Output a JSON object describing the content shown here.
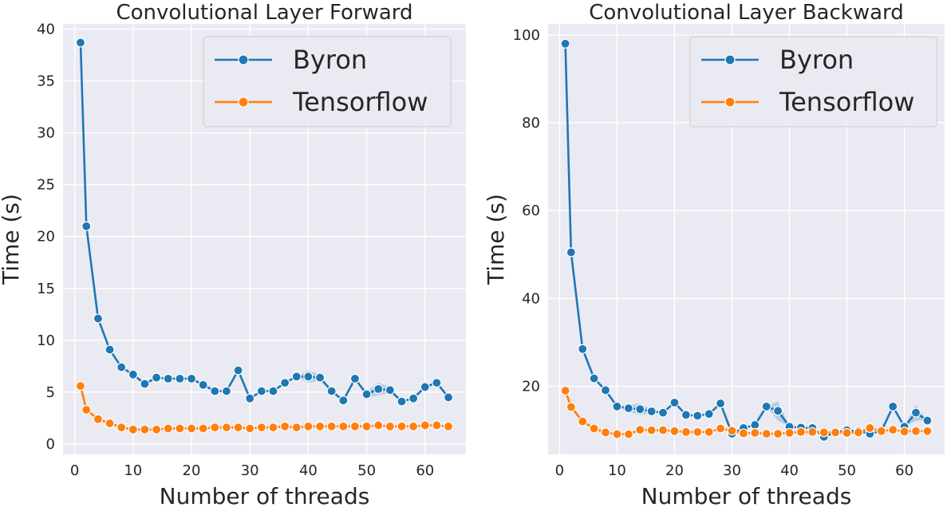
{
  "chart_data": [
    {
      "type": "line",
      "title": "Convolutional Layer Forward",
      "xlabel": "Number of threads",
      "ylabel": "Time (s)",
      "xlim": [
        -2,
        67
      ],
      "ylim": [
        -1,
        40.5
      ],
      "xticks": [
        0,
        10,
        20,
        30,
        40,
        50,
        60
      ],
      "yticks": [
        0,
        5,
        10,
        15,
        20,
        25,
        30,
        35,
        40
      ],
      "grid": true,
      "legend_position": "top-right",
      "x": [
        1,
        2,
        4,
        6,
        8,
        10,
        12,
        14,
        16,
        18,
        20,
        22,
        24,
        26,
        28,
        30,
        32,
        34,
        36,
        38,
        40,
        42,
        44,
        46,
        48,
        50,
        52,
        54,
        56,
        58,
        60,
        62,
        64
      ],
      "series": [
        {
          "name": "Byron",
          "color": "#1f77b4",
          "values": [
            38.7,
            21.0,
            12.1,
            9.1,
            7.4,
            6.7,
            5.8,
            6.4,
            6.3,
            6.3,
            6.3,
            5.7,
            5.1,
            5.1,
            7.1,
            4.4,
            5.1,
            5.1,
            5.9,
            6.5,
            6.5,
            6.4,
            5.1,
            4.2,
            6.3,
            4.8,
            5.3,
            5.2,
            4.1,
            4.4,
            5.5,
            5.9,
            4.5
          ],
          "band_halfwidth": [
            0,
            0,
            0,
            0,
            0,
            0,
            0,
            0,
            0.2,
            0,
            0,
            0,
            0,
            0,
            0,
            0,
            0,
            0,
            0,
            0,
            0.6,
            0.3,
            0,
            0,
            0,
            0.3,
            0.6,
            0.3,
            0,
            0,
            0,
            0,
            0
          ]
        },
        {
          "name": "Tensorflow",
          "color": "#ff7f0e",
          "values": [
            5.6,
            3.3,
            2.4,
            2.0,
            1.6,
            1.4,
            1.4,
            1.4,
            1.5,
            1.5,
            1.5,
            1.5,
            1.6,
            1.6,
            1.6,
            1.5,
            1.6,
            1.6,
            1.7,
            1.6,
            1.7,
            1.7,
            1.7,
            1.7,
            1.7,
            1.7,
            1.8,
            1.7,
            1.7,
            1.7,
            1.8,
            1.8,
            1.7
          ]
        }
      ]
    },
    {
      "type": "line",
      "title": "Convolutional Layer Backward",
      "xlabel": "Number of threads",
      "ylabel": "Time (s)",
      "xlim": [
        -2,
        67
      ],
      "ylim": [
        4.5,
        102.5
      ],
      "xticks": [
        0,
        10,
        20,
        30,
        40,
        50,
        60
      ],
      "yticks": [
        20,
        40,
        60,
        80,
        100
      ],
      "grid": true,
      "legend_position": "top-right",
      "x": [
        1,
        2,
        4,
        6,
        8,
        10,
        12,
        14,
        16,
        18,
        20,
        22,
        24,
        26,
        28,
        30,
        32,
        34,
        36,
        38,
        40,
        42,
        44,
        46,
        48,
        50,
        52,
        54,
        56,
        58,
        60,
        62,
        64
      ],
      "series": [
        {
          "name": "Byron",
          "color": "#1f77b4",
          "values": [
            98.0,
            50.5,
            28.5,
            21.8,
            19.1,
            15.4,
            15.0,
            14.8,
            14.3,
            14.0,
            16.3,
            13.5,
            13.3,
            13.7,
            16.1,
            9.2,
            10.5,
            11.2,
            15.4,
            14.4,
            10.8,
            10.6,
            10.5,
            8.5,
            9.5,
            10.0,
            9.8,
            9.2,
            9.8,
            15.4,
            10.8,
            14.0,
            12.2
          ],
          "band_halfwidth": [
            0,
            0,
            0,
            0,
            0,
            0,
            0.8,
            1.3,
            0.5,
            0,
            0,
            0,
            0,
            0,
            0,
            0,
            0,
            0,
            0,
            2.2,
            0,
            0,
            0,
            0,
            0,
            0,
            0,
            0,
            0,
            0,
            0,
            1.8,
            0
          ]
        },
        {
          "name": "Tensorflow",
          "color": "#ff7f0e",
          "values": [
            19.0,
            15.3,
            12.0,
            10.4,
            9.5,
            9.1,
            9.1,
            10.1,
            10.0,
            10.0,
            9.8,
            9.6,
            9.6,
            9.6,
            10.4,
            9.9,
            9.3,
            9.4,
            9.2,
            9.2,
            9.4,
            9.6,
            9.6,
            9.5,
            9.5,
            9.4,
            9.5,
            10.5,
            9.8,
            10.1,
            9.7,
            9.8,
            9.8
          ]
        }
      ]
    }
  ]
}
